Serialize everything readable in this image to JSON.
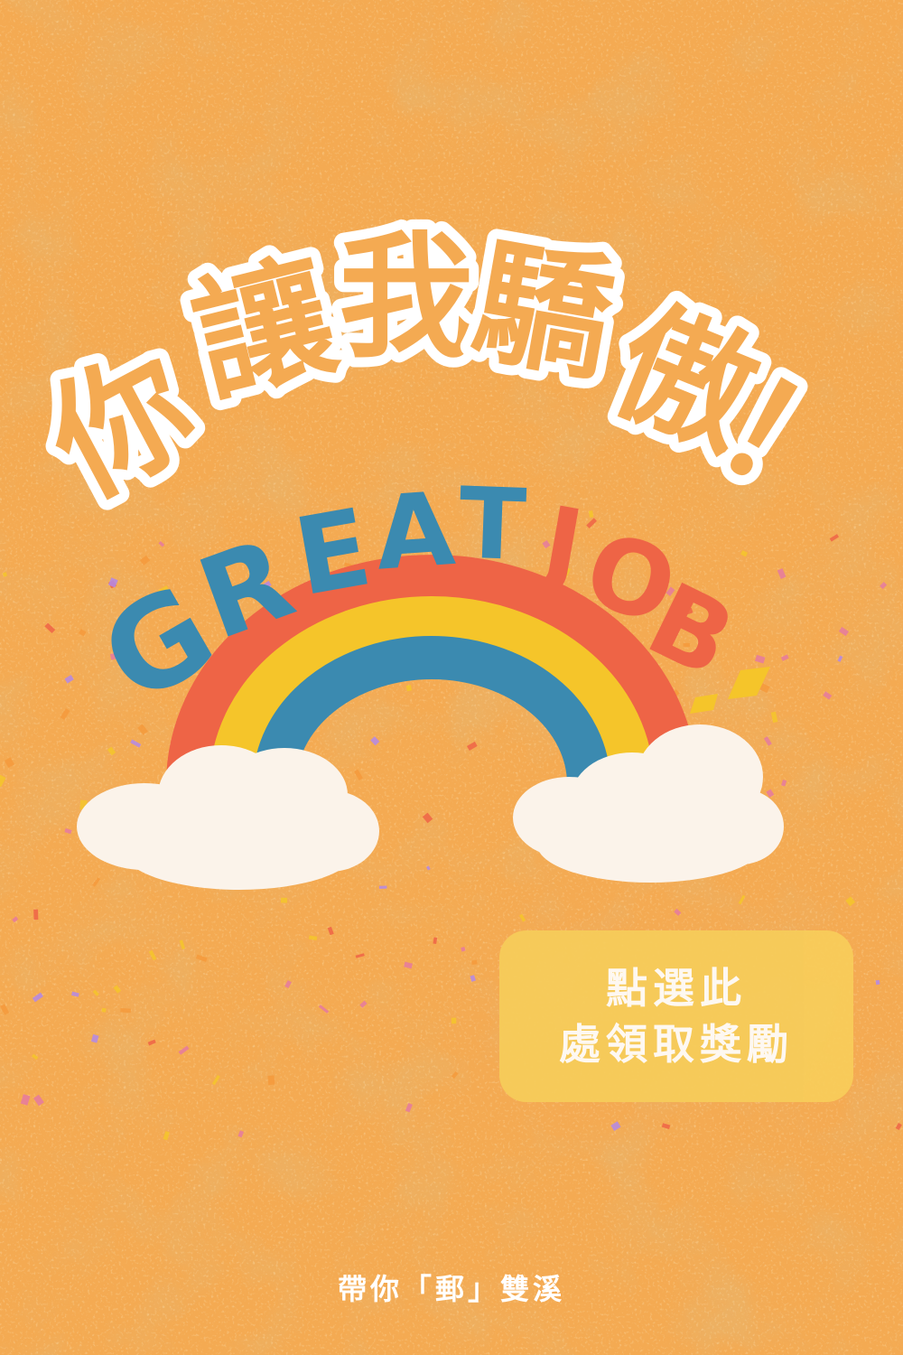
{
  "title": {
    "chars": [
      "你",
      "讓",
      "我",
      "驕",
      "傲",
      "！"
    ],
    "color": "#ffffff"
  },
  "badge": {
    "word1": [
      "G",
      "R",
      "E",
      "A",
      "T"
    ],
    "word2": [
      "J",
      "O",
      "B",
      "!"
    ],
    "word1_color": "#3b8ab0",
    "word2_color": "#ee6446",
    "exclaim_color": "#f5c52a"
  },
  "rainbow": {
    "colors": [
      "#ee6446",
      "#f5c52a",
      "#3b8ab0"
    ],
    "cloud_color": "#fbf3ea"
  },
  "reward": {
    "line1": "點選此",
    "line2": "處領取獎勵",
    "bg_color": "#f7cd5a"
  },
  "footer": "帶你「郵」雙溪",
  "background_color": "#f4aa52"
}
